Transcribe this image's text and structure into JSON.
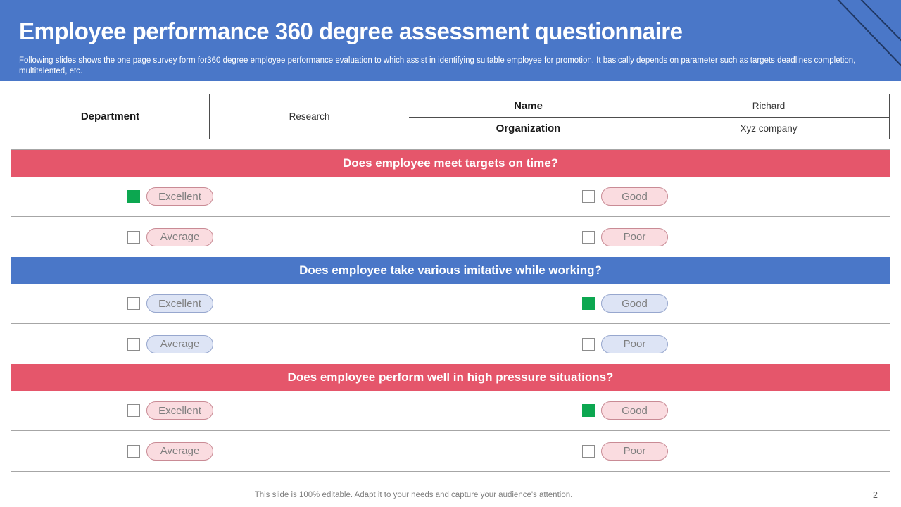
{
  "slide": {
    "title": "Employee performance 360 degree assessment questionnaire",
    "subtitle": "Following slides shows the one page survey form for360 degree employee performance evaluation to which assist in identifying suitable employee for promotion. It basically depends on  parameter such as targets deadlines completion, multitalented, etc.",
    "footer_note": "This slide is 100% editable. Adapt it to your needs and capture your audience's attention.",
    "page_number": "2"
  },
  "colors": {
    "header_blue": "#4a77c8",
    "band_red": "#e5566b",
    "band_blue": "#4a77c8",
    "check_green": "#0ca750",
    "pill_pink_bg": "#fadce0",
    "pill_pink_border": "#c98b95",
    "pill_blue_bg": "#dde4f5",
    "pill_blue_border": "#97a7ce",
    "corner_line_navy": "#203864"
  },
  "info_table": {
    "rows": [
      {
        "label": "Name",
        "value": "Richard"
      },
      {
        "label": "Organization",
        "value": "Xyz company"
      }
    ],
    "department_label": "Department",
    "department_value": "Research"
  },
  "questions": [
    {
      "text": "Does employee meet targets on time?",
      "theme": "red",
      "options": [
        {
          "label": "Excellent",
          "checked": true
        },
        {
          "label": "Good",
          "checked": false
        },
        {
          "label": "Average",
          "checked": false
        },
        {
          "label": "Poor",
          "checked": false
        }
      ]
    },
    {
      "text": "Does employee take various imitative while working?",
      "theme": "blue",
      "options": [
        {
          "label": "Excellent",
          "checked": false
        },
        {
          "label": "Good",
          "checked": true
        },
        {
          "label": "Average",
          "checked": false
        },
        {
          "label": "Poor",
          "checked": false
        }
      ]
    },
    {
      "text": "Does employee perform well in high pressure situations?",
      "theme": "red",
      "options": [
        {
          "label": "Excellent",
          "checked": false
        },
        {
          "label": "Good",
          "checked": true
        },
        {
          "label": "Average",
          "checked": false
        },
        {
          "label": "Poor",
          "checked": false
        }
      ]
    }
  ]
}
